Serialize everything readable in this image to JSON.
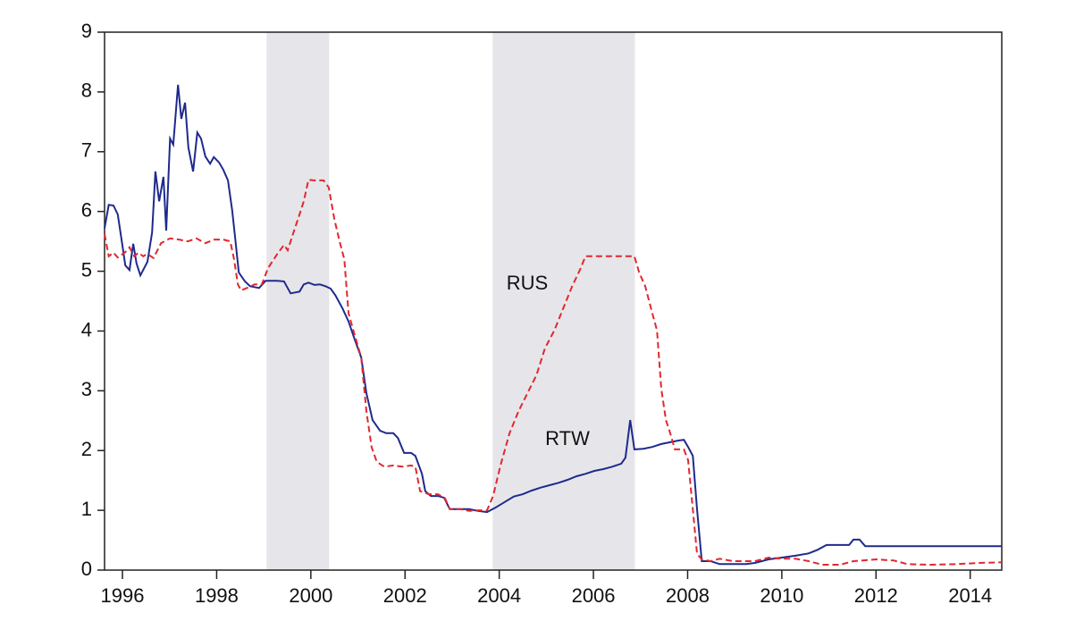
{
  "chart_data": {
    "type": "line",
    "xlim": [
      1995.62,
      2014.67
    ],
    "ylim": [
      0,
      9
    ],
    "xticks": [
      1996,
      1998,
      2000,
      2002,
      2004,
      2006,
      2008,
      2010,
      2012,
      2014
    ],
    "yticks": [
      0,
      1,
      2,
      3,
      4,
      5,
      6,
      7,
      8,
      9
    ],
    "shaded": [
      [
        1999.06,
        2000.39
      ],
      [
        2003.86,
        2006.88
      ]
    ],
    "series": [
      {
        "name": "RTW",
        "color": "#1f2a8c",
        "dash": "solid",
        "x": [
          1995.62,
          1995.71,
          1995.81,
          1995.9,
          1996.0,
          1996.06,
          1996.15,
          1996.23,
          1996.3,
          1996.38,
          1996.53,
          1996.63,
          1996.7,
          1996.78,
          1996.87,
          1996.93,
          1997.01,
          1997.08,
          1997.18,
          1997.25,
          1997.33,
          1997.4,
          1997.5,
          1997.59,
          1997.67,
          1997.76,
          1997.86,
          1997.94,
          1998.05,
          1998.14,
          1998.24,
          1998.33,
          1998.39,
          1998.47,
          1998.6,
          1998.71,
          1998.9,
          1999.04,
          1999.28,
          1999.43,
          1999.57,
          1999.76,
          1999.85,
          1999.95,
          2000.08,
          2000.19,
          2000.31,
          2000.42,
          2000.52,
          2000.67,
          2000.8,
          2000.93,
          2001.07,
          2001.18,
          2001.31,
          2001.47,
          2001.6,
          2001.75,
          2001.85,
          2001.98,
          2002.13,
          2002.22,
          2002.36,
          2002.43,
          2002.55,
          2002.7,
          2002.83,
          2002.95,
          2003.17,
          2003.36,
          2003.55,
          2003.74,
          2003.93,
          2004.12,
          2004.31,
          2004.5,
          2004.69,
          2004.88,
          2005.07,
          2005.26,
          2005.45,
          2005.64,
          2005.83,
          2006.02,
          2006.21,
          2006.4,
          2006.59,
          2006.68,
          2006.78,
          2006.87,
          2007.06,
          2007.25,
          2007.44,
          2007.63,
          2007.82,
          2007.92,
          2008.01,
          2008.11,
          2008.2,
          2008.3,
          2008.49,
          2008.68,
          2008.96,
          2009.24,
          2009.43,
          2009.72,
          2010.0,
          2010.29,
          2010.57,
          2010.76,
          2010.95,
          2011.24,
          2011.43,
          2011.52,
          2011.65,
          2011.77,
          2012.38,
          2013.32,
          2014.67
        ],
        "values": [
          5.72,
          6.11,
          6.1,
          5.95,
          5.43,
          5.1,
          5.02,
          5.46,
          5.13,
          4.93,
          5.16,
          5.65,
          6.67,
          6.17,
          6.58,
          5.68,
          7.22,
          7.12,
          8.12,
          7.55,
          7.82,
          7.07,
          6.67,
          7.32,
          7.22,
          6.92,
          6.8,
          6.91,
          6.82,
          6.7,
          6.52,
          6.02,
          5.58,
          4.98,
          4.83,
          4.75,
          4.72,
          4.84,
          4.84,
          4.83,
          4.63,
          4.66,
          4.78,
          4.81,
          4.77,
          4.78,
          4.75,
          4.71,
          4.6,
          4.38,
          4.16,
          3.86,
          3.56,
          2.96,
          2.51,
          2.33,
          2.29,
          2.29,
          2.21,
          1.96,
          1.96,
          1.91,
          1.61,
          1.32,
          1.24,
          1.24,
          1.21,
          1.02,
          1.02,
          1.02,
          0.99,
          0.97,
          1.05,
          1.14,
          1.23,
          1.27,
          1.33,
          1.38,
          1.42,
          1.46,
          1.51,
          1.57,
          1.61,
          1.66,
          1.69,
          1.73,
          1.78,
          1.88,
          2.51,
          2.02,
          2.03,
          2.06,
          2.11,
          2.14,
          2.17,
          2.18,
          2.06,
          1.91,
          1.02,
          0.15,
          0.15,
          0.1,
          0.1,
          0.1,
          0.12,
          0.18,
          0.21,
          0.24,
          0.28,
          0.34,
          0.42,
          0.42,
          0.42,
          0.51,
          0.51,
          0.4,
          0.4,
          0.4,
          0.4
        ]
      },
      {
        "name": "RUS",
        "color": "#e0282e",
        "dash": "dashed",
        "x": [
          1995.62,
          1995.71,
          1995.81,
          1995.9,
          1996.06,
          1996.15,
          1996.25,
          1996.34,
          1996.44,
          1996.53,
          1996.66,
          1996.82,
          1997.01,
          1997.2,
          1997.39,
          1997.57,
          1997.76,
          1997.95,
          1998.14,
          1998.29,
          1998.37,
          1998.45,
          1998.52,
          1998.64,
          1998.81,
          1998.96,
          1999.09,
          1999.28,
          1999.43,
          1999.51,
          1999.62,
          1999.76,
          1999.85,
          1999.95,
          2000.08,
          2000.27,
          2000.38,
          2000.5,
          2000.61,
          2000.71,
          2000.8,
          2000.93,
          2001.07,
          2001.18,
          2001.29,
          2001.4,
          2001.56,
          2001.75,
          2001.94,
          2002.13,
          2002.22,
          2002.32,
          2002.51,
          2002.7,
          2002.85,
          2002.95,
          2003.17,
          2003.36,
          2003.55,
          2003.74,
          2003.87,
          2004.03,
          2004.22,
          2004.41,
          2004.6,
          2004.79,
          2004.97,
          2005.17,
          2005.36,
          2005.55,
          2005.73,
          2005.83,
          2006.02,
          2006.3,
          2006.59,
          2006.87,
          2006.97,
          2007.1,
          2007.25,
          2007.35,
          2007.44,
          2007.54,
          2007.63,
          2007.73,
          2007.92,
          2008.01,
          2008.11,
          2008.2,
          2008.3,
          2008.49,
          2008.68,
          2008.96,
          2009.24,
          2009.43,
          2009.72,
          2010.0,
          2010.29,
          2010.57,
          2010.86,
          2011.24,
          2011.52,
          2011.71,
          2012.0,
          2012.38,
          2012.66,
          2013.14,
          2013.71,
          2014.18,
          2014.67
        ],
        "values": [
          5.62,
          5.25,
          5.31,
          5.23,
          5.32,
          5.4,
          5.25,
          5.31,
          5.25,
          5.29,
          5.22,
          5.47,
          5.55,
          5.53,
          5.5,
          5.55,
          5.47,
          5.53,
          5.53,
          5.5,
          5.2,
          4.78,
          4.68,
          4.72,
          4.78,
          4.78,
          5.05,
          5.28,
          5.44,
          5.35,
          5.62,
          5.95,
          6.17,
          6.53,
          6.52,
          6.52,
          6.4,
          5.87,
          5.5,
          5.2,
          4.3,
          3.93,
          3.56,
          2.66,
          2.06,
          1.81,
          1.73,
          1.75,
          1.73,
          1.75,
          1.73,
          1.32,
          1.27,
          1.27,
          1.2,
          1.02,
          1.02,
          0.99,
          1.0,
          1.0,
          1.24,
          1.76,
          2.29,
          2.66,
          2.96,
          3.26,
          3.71,
          4.01,
          4.38,
          4.75,
          5.05,
          5.25,
          5.25,
          5.25,
          5.25,
          5.25,
          4.98,
          4.75,
          4.3,
          4.01,
          3.03,
          2.51,
          2.29,
          2.02,
          2.02,
          1.84,
          1.02,
          0.27,
          0.18,
          0.15,
          0.19,
          0.15,
          0.15,
          0.15,
          0.21,
          0.19,
          0.19,
          0.15,
          0.09,
          0.09,
          0.15,
          0.16,
          0.18,
          0.16,
          0.1,
          0.09,
          0.1,
          0.12,
          0.13
        ]
      }
    ]
  }
}
